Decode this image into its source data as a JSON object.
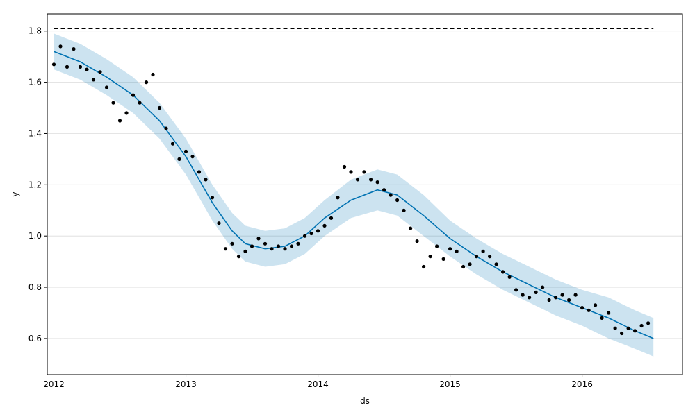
{
  "chart_data": {
    "type": "line",
    "title": "",
    "xlabel": "ds",
    "ylabel": "y",
    "grid": true,
    "xlim": [
      2011.95,
      2016.76
    ],
    "ylim": [
      0.459,
      1.867
    ],
    "x_ticks": [
      {
        "value": 2012,
        "label": "2012"
      },
      {
        "value": 2013,
        "label": "2013"
      },
      {
        "value": 2014,
        "label": "2014"
      },
      {
        "value": 2015,
        "label": "2015"
      },
      {
        "value": 2016,
        "label": "2016"
      }
    ],
    "y_ticks": [
      {
        "value": 0.6,
        "label": "0.6"
      },
      {
        "value": 0.8,
        "label": "0.8"
      },
      {
        "value": 1.0,
        "label": "1.0"
      },
      {
        "value": 1.2,
        "label": "1.2"
      },
      {
        "value": 1.4,
        "label": "1.4"
      },
      {
        "value": 1.6,
        "label": "1.6"
      },
      {
        "value": 1.8,
        "label": "1.8"
      }
    ],
    "cap": {
      "value": 1.81,
      "x_start": 2012.0,
      "x_end": 2016.54,
      "style": "dashed",
      "color": "#000000"
    },
    "colors": {
      "forecast": "#0072B2",
      "interval": "#0072B2",
      "observed": "#000000"
    },
    "forecast": {
      "x": [
        2012.0,
        2012.2,
        2012.4,
        2012.6,
        2012.8,
        2013.0,
        2013.2,
        2013.35,
        2013.45,
        2013.6,
        2013.75,
        2013.9,
        2014.05,
        2014.25,
        2014.45,
        2014.6,
        2014.8,
        2015.0,
        2015.2,
        2015.4,
        2015.6,
        2015.8,
        2016.0,
        2016.2,
        2016.4,
        2016.54
      ],
      "yhat": [
        1.72,
        1.68,
        1.62,
        1.55,
        1.45,
        1.31,
        1.13,
        1.02,
        0.97,
        0.95,
        0.96,
        1.0,
        1.07,
        1.14,
        1.18,
        1.16,
        1.08,
        0.99,
        0.92,
        0.86,
        0.81,
        0.76,
        0.72,
        0.68,
        0.63,
        0.6
      ],
      "upper": [
        1.79,
        1.75,
        1.69,
        1.62,
        1.52,
        1.38,
        1.2,
        1.09,
        1.04,
        1.02,
        1.03,
        1.07,
        1.14,
        1.22,
        1.26,
        1.24,
        1.16,
        1.06,
        0.99,
        0.93,
        0.88,
        0.83,
        0.79,
        0.76,
        0.71,
        0.68
      ],
      "lower": [
        1.65,
        1.61,
        1.55,
        1.48,
        1.38,
        1.24,
        1.06,
        0.95,
        0.9,
        0.88,
        0.89,
        0.93,
        1.0,
        1.07,
        1.1,
        1.08,
        1.0,
        0.92,
        0.85,
        0.79,
        0.74,
        0.69,
        0.65,
        0.6,
        0.56,
        0.53
      ]
    },
    "observed": {
      "x": [
        2012.0,
        2012.05,
        2012.1,
        2012.15,
        2012.2,
        2012.25,
        2012.3,
        2012.35,
        2012.4,
        2012.45,
        2012.5,
        2012.55,
        2012.6,
        2012.65,
        2012.7,
        2012.75,
        2012.8,
        2012.85,
        2012.9,
        2012.95,
        2013.0,
        2013.05,
        2013.1,
        2013.15,
        2013.2,
        2013.25,
        2013.3,
        2013.35,
        2013.4,
        2013.45,
        2013.5,
        2013.55,
        2013.6,
        2013.65,
        2013.7,
        2013.75,
        2013.8,
        2013.85,
        2013.9,
        2013.95,
        2014.0,
        2014.05,
        2014.1,
        2014.15,
        2014.2,
        2014.25,
        2014.3,
        2014.35,
        2014.4,
        2014.45,
        2014.5,
        2014.55,
        2014.6,
        2014.65,
        2014.7,
        2014.75,
        2014.8,
        2014.85,
        2014.9,
        2014.95,
        2015.0,
        2015.05,
        2015.1,
        2015.15,
        2015.2,
        2015.25,
        2015.3,
        2015.35,
        2015.4,
        2015.45,
        2015.5,
        2015.55,
        2015.6,
        2015.65,
        2015.7,
        2015.75,
        2015.8,
        2015.85,
        2015.9,
        2015.95,
        2016.0,
        2016.05,
        2016.1,
        2016.15,
        2016.2,
        2016.25,
        2016.3,
        2016.35,
        2016.4,
        2016.45,
        2016.5
      ],
      "y": [
        1.67,
        1.74,
        1.66,
        1.73,
        1.66,
        1.65,
        1.61,
        1.64,
        1.58,
        1.52,
        1.45,
        1.48,
        1.55,
        1.52,
        1.6,
        1.63,
        1.5,
        1.42,
        1.36,
        1.3,
        1.33,
        1.31,
        1.25,
        1.22,
        1.15,
        1.05,
        0.95,
        0.97,
        0.92,
        0.94,
        0.96,
        0.99,
        0.97,
        0.95,
        0.96,
        0.95,
        0.96,
        0.97,
        1.0,
        1.01,
        1.02,
        1.04,
        1.07,
        1.15,
        1.27,
        1.25,
        1.22,
        1.25,
        1.22,
        1.21,
        1.18,
        1.16,
        1.14,
        1.1,
        1.03,
        0.98,
        0.88,
        0.92,
        0.96,
        0.91,
        0.95,
        0.94,
        0.88,
        0.89,
        0.92,
        0.94,
        0.92,
        0.89,
        0.86,
        0.84,
        0.79,
        0.77,
        0.76,
        0.78,
        0.8,
        0.75,
        0.76,
        0.77,
        0.75,
        0.77,
        0.72,
        0.71,
        0.73,
        0.68,
        0.7,
        0.64,
        0.62,
        0.64,
        0.63,
        0.65,
        0.66
      ]
    }
  }
}
